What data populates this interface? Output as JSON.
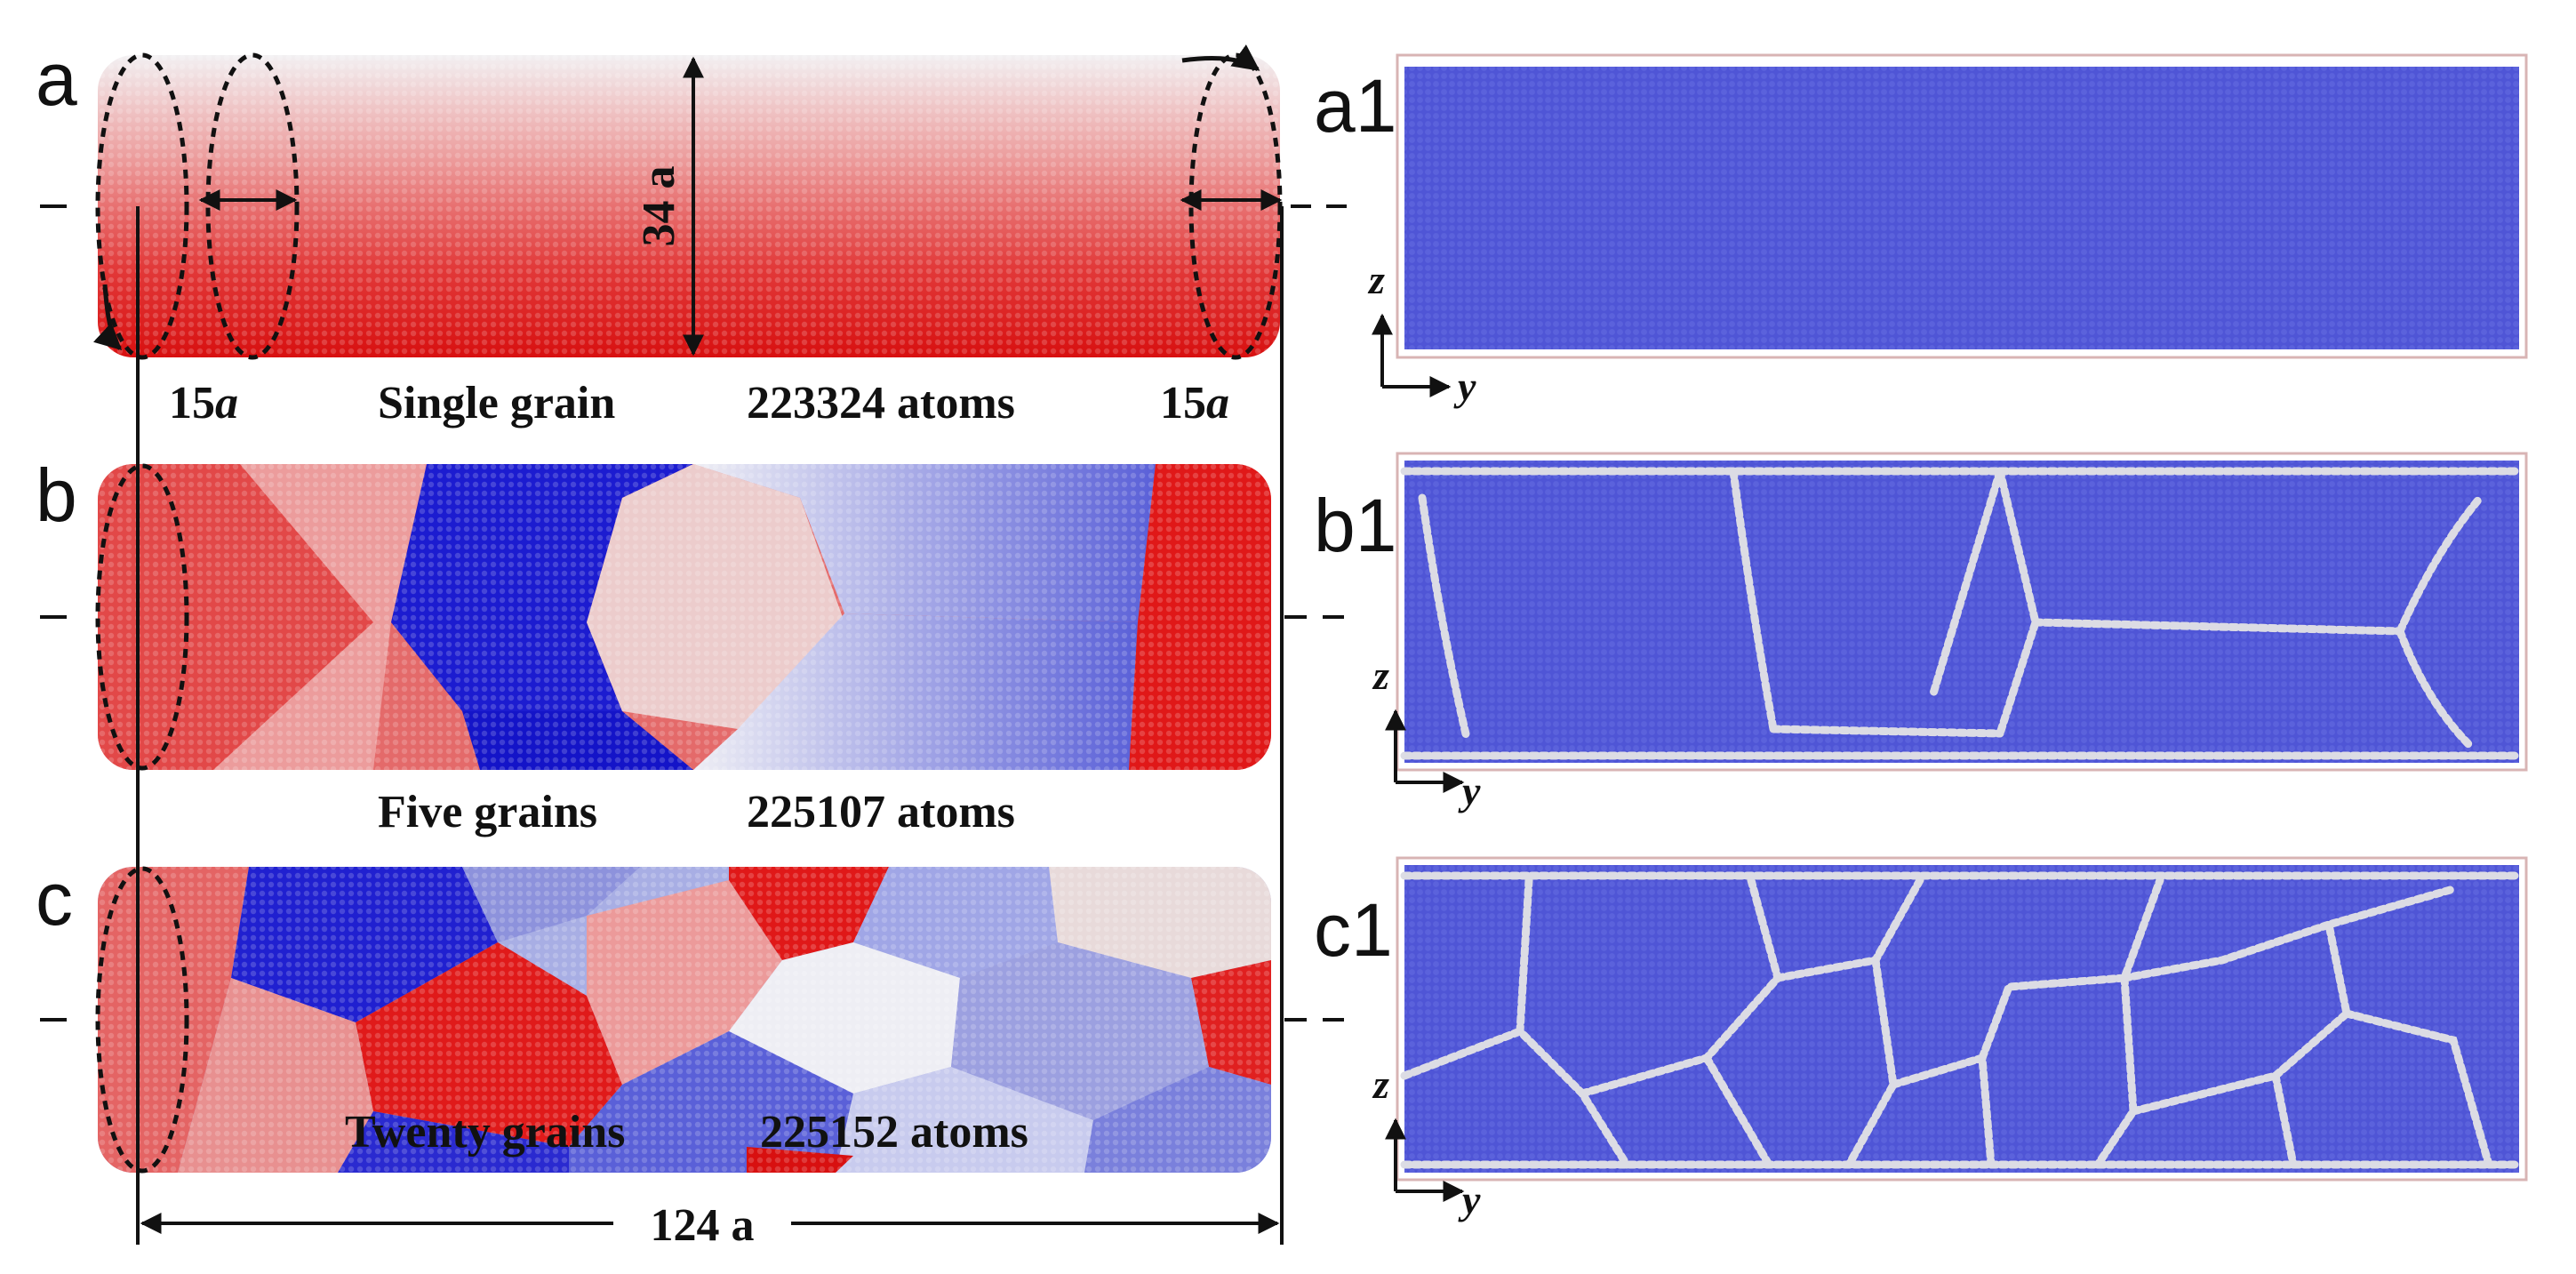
{
  "panels": {
    "a": {
      "label": "a",
      "caption_grain": "Single grain",
      "caption_atoms": "223324 atoms"
    },
    "b": {
      "label": "b",
      "caption_grain": "Five grains",
      "caption_atoms": "225107 atoms"
    },
    "c": {
      "label": "c",
      "caption_grain": "Twenty grains",
      "caption_atoms": "225152 atoms"
    },
    "a1": {
      "label": "a1"
    },
    "b1": {
      "label": "b1"
    },
    "c1": {
      "label": "c1"
    }
  },
  "dimensions": {
    "length": "124 a",
    "diameter": "34 a",
    "end_left": "15",
    "end_right": "15",
    "end_unit": "a"
  },
  "axes": {
    "vertical": "z",
    "horizontal": "y"
  },
  "colors": {
    "red": "#e01818",
    "light_red": "#e88c8c",
    "white": "#ececf2",
    "light_blue": "#8d92dc",
    "blue": "#1a1ad2",
    "atom_blue": "#4f55d6",
    "boundary": "#d9d9e0",
    "box_border": "#d8b4b4"
  }
}
